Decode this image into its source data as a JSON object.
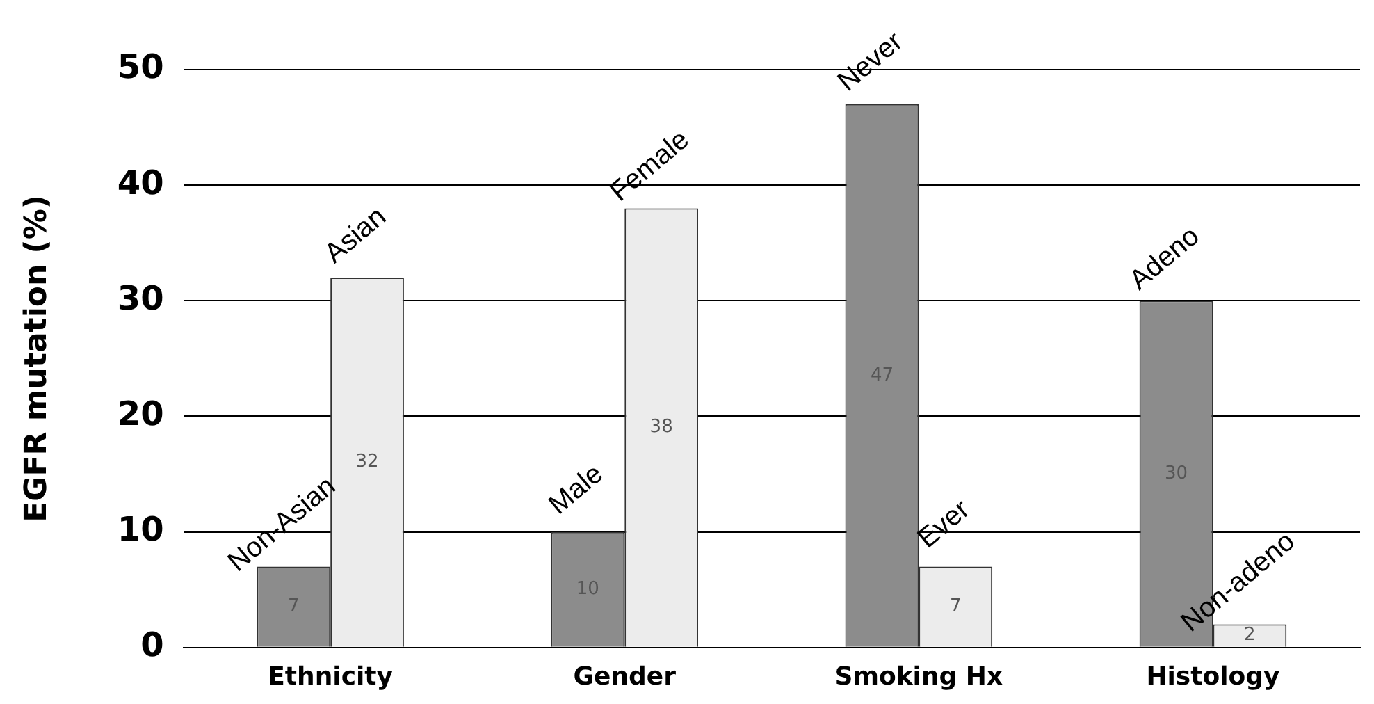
{
  "chart_data": {
    "type": "bar",
    "ylabel": "EGFR mutation (%)",
    "categories": [
      "Ethnicity",
      "Gender",
      "Smoking Hx",
      "Histology"
    ],
    "series": [
      {
        "color": "#8c8c8c",
        "values": [
          7,
          10,
          47,
          30
        ]
      },
      {
        "color": "#ececec",
        "values": [
          32,
          38,
          7,
          2
        ]
      }
    ],
    "ylim": [
      0,
      50
    ],
    "yticks": [
      0,
      10,
      20,
      30,
      40,
      50
    ],
    "grid": "y",
    "legend": false,
    "data_labels": true,
    "annotations": [
      {
        "text": "Non-Asian",
        "x": "Ethnicity",
        "y": 7
      },
      {
        "text": "Asian",
        "x": "Ethnicity",
        "y": 32
      },
      {
        "text": "Male",
        "x": "Gender",
        "y": 10
      },
      {
        "text": "Female",
        "x": "Gender",
        "y": 38
      },
      {
        "text": "Never",
        "x": "Smoking Hx",
        "y": 47
      },
      {
        "text": "Ever",
        "x": "Smoking Hx",
        "y": 7
      },
      {
        "text": "Adeno",
        "x": "Histology",
        "y": 30
      },
      {
        "text": "Non-adeno",
        "x": "Histology",
        "y": 2
      }
    ]
  }
}
